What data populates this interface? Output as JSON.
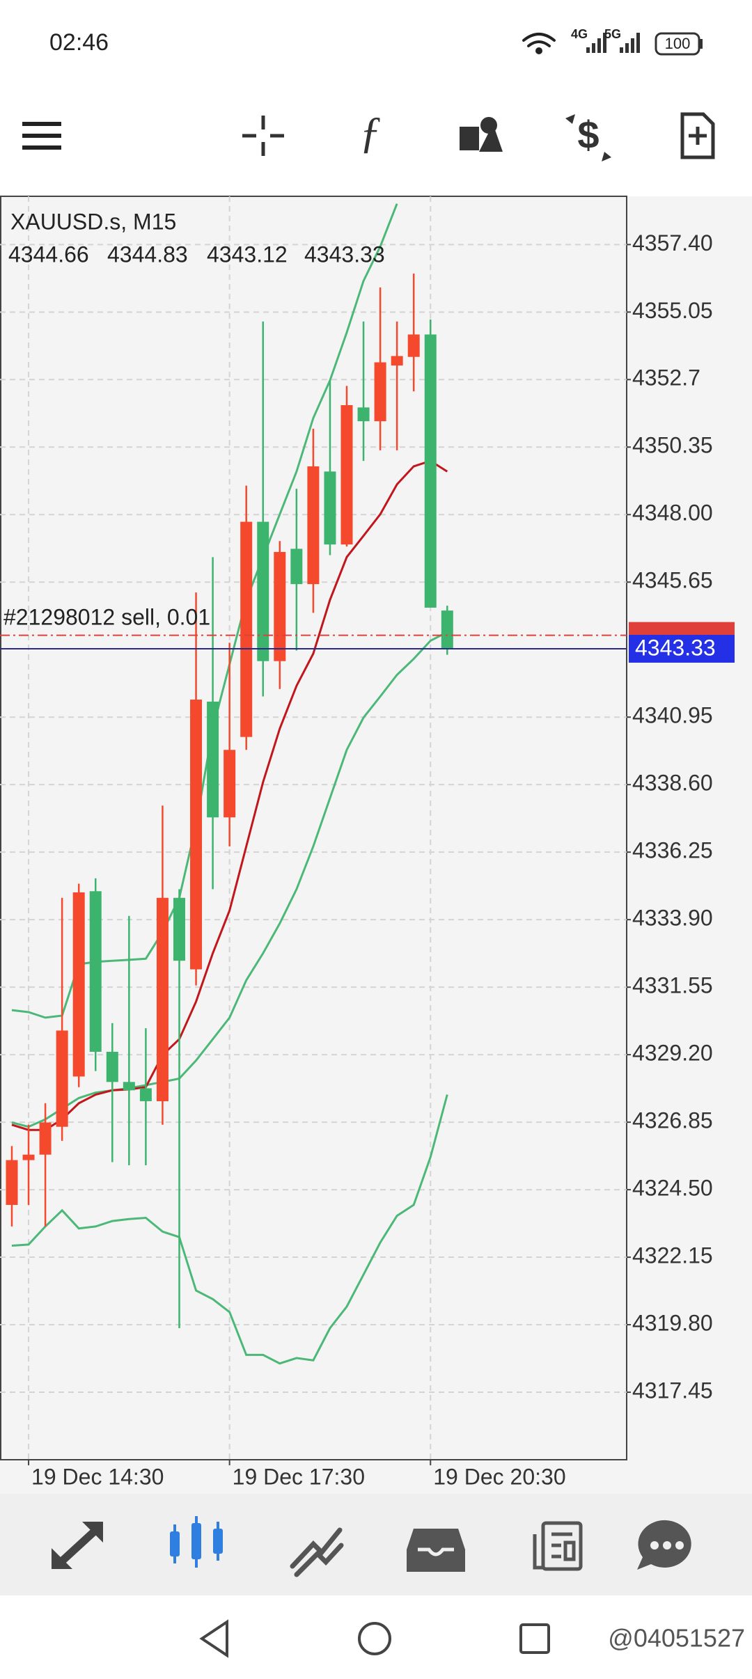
{
  "status_bar": {
    "time": "02:46",
    "net1": "4G",
    "net2": "5G",
    "battery": "100"
  },
  "watermark": "@04051527",
  "chart_data": {
    "type": "candlestick",
    "title": "XAUUSD.s, M15",
    "categories": [
      null,
      "19 Dec 14:30",
      null,
      null,
      null,
      null,
      null,
      null,
      null,
      null,
      null,
      null,
      null,
      "19 Dec 17:30",
      null,
      null,
      null,
      null,
      null,
      null,
      null,
      null,
      null,
      null,
      null,
      "19 Dec 20:30",
      null
    ],
    "open": [
      4323.97,
      4325.53,
      4325.72,
      4326.69,
      4328.44,
      4334.89,
      4329.3,
      4328.25,
      4328.03,
      4327.58,
      4334.66,
      4332.17,
      4341.49,
      4337.46,
      4340.26,
      4347.75,
      4342.9,
      4346.81,
      4345.58,
      4349.5,
      4346.96,
      4351.73,
      4351.25,
      4353.19,
      4353.49,
      4354.27,
      4344.66
    ],
    "high": [
      4326.02,
      4326.76,
      4327.51,
      4334.66,
      4335.15,
      4335.34,
      4330.3,
      4334.03,
      4330.12,
      4337.87,
      4334.96,
      4345.29,
      4346.52,
      4343.54,
      4349.01,
      4354.72,
      4347.08,
      4348.9,
      4350.99,
      4352.67,
      4352.48,
      4354.72,
      4355.91,
      4354.72,
      4356.39,
      4354.79,
      4344.83
    ],
    "low": [
      4323.22,
      4323.97,
      4323.22,
      4326.2,
      4328.07,
      4328.63,
      4325.46,
      4325.35,
      4325.35,
      4326.76,
      4319.68,
      4331.61,
      4334.96,
      4336.45,
      4339.81,
      4341.67,
      4341.93,
      4343.27,
      4344.58,
      4346.59,
      4346.89,
      4349.87,
      4350.24,
      4350.24,
      4352.29,
      4344.76,
      4343.12
    ],
    "close": [
      4325.53,
      4325.72,
      4326.84,
      4330.04,
      4334.85,
      4329.3,
      4328.25,
      4327.96,
      4327.58,
      4334.66,
      4332.47,
      4341.56,
      4337.46,
      4339.81,
      4347.75,
      4342.9,
      4346.7,
      4345.58,
      4349.68,
      4346.96,
      4351.81,
      4351.25,
      4353.3,
      4353.52,
      4354.27,
      4344.76,
      4343.33
    ],
    "up_color": "#f4492c",
    "down_color": "#3cb46e",
    "indicators": [
      {
        "color": "#4cb878",
        "values": [
          4330.75,
          4330.68,
          4330.49,
          4330.56,
          4332.35,
          4332.43,
          4332.47,
          4332.5,
          4332.54,
          4333.47,
          4334.66,
          4337.2,
          4340.55,
          4342.79,
          4345.03,
          4346.52,
          4348.01,
          4349.5,
          4351.36,
          4352.67,
          4354.34,
          4356.13,
          4357.33,
          4358.82,
          null,
          null,
          null
        ]
      },
      {
        "color": "#4cb878",
        "values": [
          4326.84,
          4326.69,
          4326.95,
          4327.32,
          4327.69,
          4327.88,
          4327.96,
          4328.03,
          4328.14,
          4328.25,
          4328.37,
          4329.0,
          4329.74,
          4330.49,
          4331.79,
          4332.73,
          4333.77,
          4334.96,
          4336.45,
          4338.13,
          4339.81,
          4340.93,
          4341.67,
          4342.42,
          4342.98,
          4343.61,
          4343.91
        ]
      },
      {
        "color": "#4cb878",
        "values": [
          4322.55,
          4322.59,
          4323.22,
          4323.78,
          4323.15,
          4323.22,
          4323.41,
          4323.48,
          4323.52,
          4323.04,
          4322.85,
          4320.99,
          4320.69,
          4320.24,
          4318.75,
          4318.75,
          4318.45,
          4318.64,
          4318.56,
          4319.68,
          4320.43,
          4321.54,
          4322.66,
          4323.59,
          4323.97,
          4325.64,
          4327.81
        ]
      },
      {
        "color": "#c0161c",
        "values": [
          4326.76,
          4326.58,
          4326.58,
          4326.95,
          4327.51,
          4327.81,
          4327.96,
          4327.99,
          4328.07,
          4329.19,
          4329.74,
          4331.05,
          4332.73,
          4334.22,
          4336.45,
          4338.69,
          4340.55,
          4342.04,
          4343.16,
          4345.03,
          4346.52,
          4347.26,
          4348.01,
          4349.05,
          4349.68,
          4349.87,
          4349.5
        ]
      }
    ],
    "order": {
      "label": "#21298012 sell, 0.01",
      "price": 4343.8,
      "color": "#e0403a"
    },
    "bid": 4343.33,
    "bid_color": "#2430e6",
    "ylim": [
      4315.1,
      4359.08
    ],
    "yticks": [
      {
        "value": 4357.4,
        "label": "4357.40"
      },
      4355.05,
      4352.7,
      4350.35,
      {
        "value": 4348,
        "label": "4348.00"
      },
      4345.65,
      4340.95,
      {
        "value": 4338.6,
        "label": "4338.60"
      },
      4336.25,
      {
        "value": 4333.9,
        "label": "4333.90"
      },
      4331.55,
      {
        "value": 4329.2,
        "label": "4329.20"
      },
      4326.85,
      {
        "value": 4324.5,
        "label": "4324.50"
      },
      4322.15,
      {
        "value": 4319.8,
        "label": "4319.80"
      },
      4317.45
    ],
    "grid": true
  }
}
